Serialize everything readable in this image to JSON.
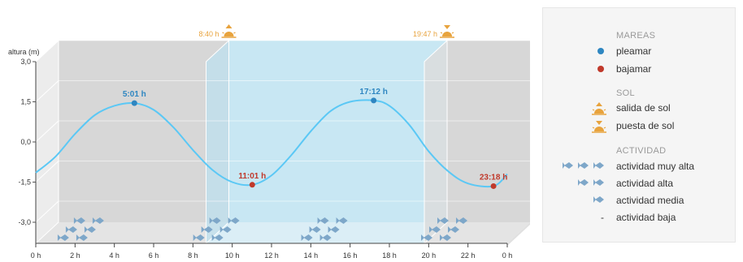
{
  "chart_data": {
    "type": "line",
    "ylabel": "altura (m)",
    "y_ticks": [
      "3,0",
      "1,5",
      "0,0",
      "-1,5",
      "-3,0"
    ],
    "y_tick_values": [
      3.0,
      1.5,
      0.0,
      -1.5,
      -3.0
    ],
    "ylim": [
      -3.9,
      3.0
    ],
    "x_ticks": [
      "0 h",
      "2 h",
      "4 h",
      "6 h",
      "8 h",
      "10 h",
      "12 h",
      "14 h",
      "16 h",
      "18 h",
      "20 h",
      "22 h",
      "0 h"
    ],
    "x_tick_values": [
      0,
      2,
      4,
      6,
      8,
      10,
      12,
      14,
      16,
      18,
      20,
      22,
      24
    ],
    "xlim": [
      0,
      24
    ],
    "tide_curve": {
      "x": [
        0,
        1,
        2,
        3,
        4,
        5.02,
        6,
        7,
        8,
        9,
        10,
        11.02,
        12,
        13,
        14,
        15,
        16,
        17.2,
        18,
        19,
        20,
        21,
        22,
        23.3,
        24
      ],
      "y": [
        -1.15,
        -0.55,
        0.3,
        1.0,
        1.35,
        1.45,
        1.2,
        0.55,
        -0.3,
        -1.05,
        -1.5,
        -1.6,
        -1.25,
        -0.5,
        0.4,
        1.15,
        1.5,
        1.55,
        1.35,
        0.65,
        -0.35,
        -1.1,
        -1.55,
        -1.65,
        -1.2
      ]
    },
    "tide_events": [
      {
        "type": "pleamar",
        "label": "5:01 h",
        "x": 5.02,
        "y": 1.45,
        "color": "#2e86c1"
      },
      {
        "type": "bajamar",
        "label": "11:01 h",
        "x": 11.02,
        "y": -1.6,
        "color": "#c0392b"
      },
      {
        "type": "pleamar",
        "label": "17:12 h",
        "x": 17.2,
        "y": 1.55,
        "color": "#2e86c1"
      },
      {
        "type": "bajamar",
        "label": "23:18 h",
        "x": 23.3,
        "y": -1.65,
        "color": "#c0392b"
      }
    ],
    "sun": {
      "sunrise_label": "8:40 h",
      "sunrise_x": 8.67,
      "sunset_label": "19:47 h",
      "sunset_x": 19.78,
      "color": "#e8a33d"
    },
    "activity": [
      {
        "x": 1.9,
        "level": 3
      },
      {
        "x": 8.8,
        "level": 3
      },
      {
        "x": 14.3,
        "level": 3
      },
      {
        "x": 20.4,
        "level": 3
      }
    ]
  },
  "colors": {
    "curve": "#5bc8f5",
    "day_band": "#c8e7f3",
    "night_band": "#d7d7d7",
    "fish": "#7ea7c9",
    "pleamar": "#2e86c1",
    "bajamar": "#c0392b",
    "sun": "#e8a33d"
  },
  "legend": {
    "mareas": {
      "title": "MAREAS",
      "pleamar": "pleamar",
      "bajamar": "bajamar"
    },
    "sol": {
      "title": "SOL",
      "salida": "salida de sol",
      "puesta": "puesta de sol"
    },
    "actividad": {
      "title": "ACTIVIDAD",
      "muy_alta": "actividad muy alta",
      "alta": "actividad alta",
      "media": "actividad media",
      "baja": "actividad baja",
      "baja_symbol": "-"
    }
  }
}
